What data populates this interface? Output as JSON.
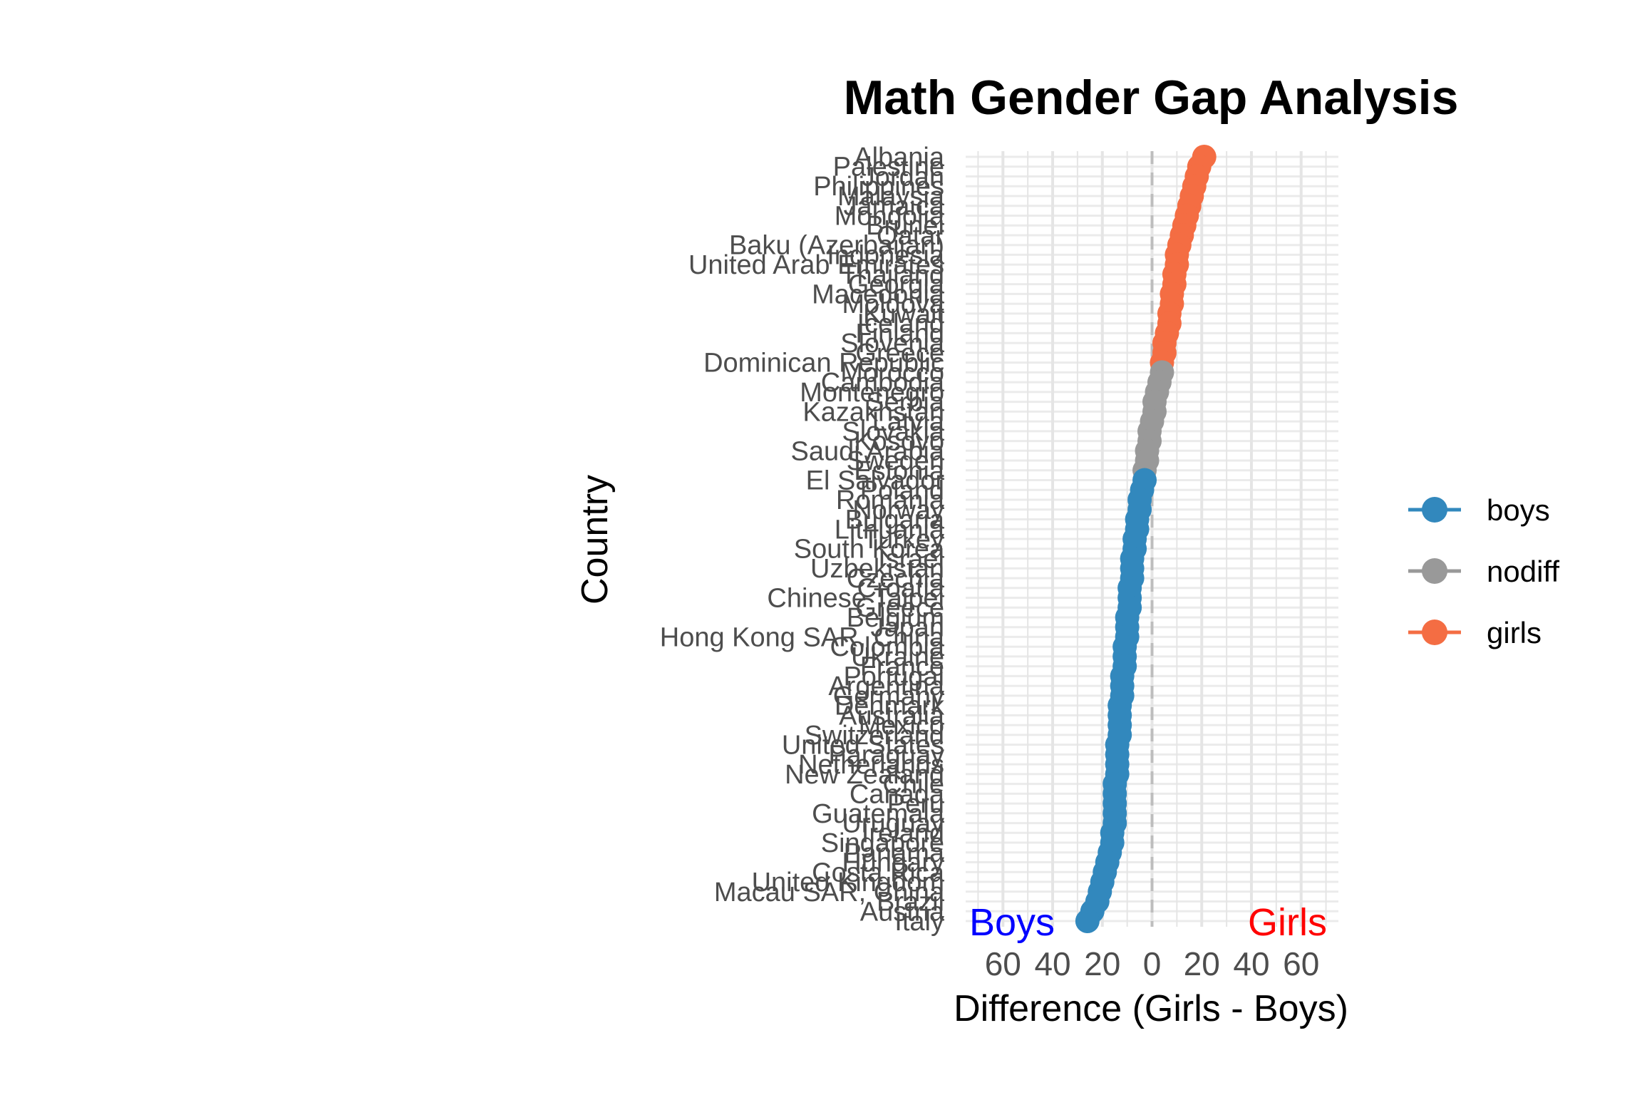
{
  "chart_data": {
    "type": "scatter",
    "title": "Math Gender Gap Analysis",
    "xlabel": "Difference (Girls - Boys)",
    "ylabel": "Country",
    "xlim": [
      -75,
      75
    ],
    "x_ticks": [
      -60,
      -40,
      -20,
      0,
      20,
      40,
      60
    ],
    "x_tick_labels": [
      "60",
      "40",
      "20",
      "0",
      "20",
      "40",
      "60"
    ],
    "grid": true,
    "reference_line_x": 0,
    "corner_labels": {
      "left": "Boys",
      "right": "Girls",
      "left_color": "#0000ff",
      "right_color": "#ff0000"
    },
    "legend": {
      "position": "right",
      "entries": [
        {
          "key": "boys",
          "label": "boys",
          "color": "#3288bd"
        },
        {
          "key": "nodiff",
          "label": "nodiff",
          "color": "#999999"
        },
        {
          "key": "girls",
          "label": "girls",
          "color": "#f46d43"
        }
      ]
    },
    "countries": [
      "Albania",
      "Palestine",
      "Jordan",
      "Philippines",
      "Malaysia",
      "Jamaica",
      "Mongolia",
      "Brunei",
      "Qatar",
      "Baku (Azerbaijan)",
      "Indonesia",
      "United Arab Emirates",
      "Thailand",
      "Georgia",
      "Macedonia",
      "Moldova",
      "Kuwait",
      "Iceland",
      "Finland",
      "Slovenia",
      "Greece",
      "Dominican Republic",
      "Morocco",
      "Cambodia",
      "Montenegro",
      "Serbia",
      "Kazakhstan",
      "Latvia",
      "Slovakia",
      "Kosovo",
      "Saudi Arabia",
      "Sweden",
      "Estonia",
      "El Salvador",
      "Poland",
      "Romania",
      "Norway",
      "Bulgaria",
      "Lithuania",
      "Turkey",
      "South Korea",
      "Israel",
      "Uzbekistan",
      "Czechia",
      "Croatia",
      "Chinese Taipei",
      "Greece",
      "Belgium",
      "Japan",
      "Hong Kong SAR, China",
      "Colombia",
      "Ukraine",
      "France",
      "Portugal",
      "Argentina",
      "Germany",
      "Denmark",
      "Australia",
      "Mexico",
      "Switzerland",
      "United States",
      "Paraguay",
      "Netherlands",
      "New Zealand",
      "Chile",
      "Canada",
      "Peru",
      "Guatemala",
      "Uruguay",
      "Ireland",
      "Singapore",
      "Panama",
      "Hungary",
      "Costa Rica",
      "United Kingdom",
      "Macau SAR, China",
      "Brazil",
      "Austria",
      "Italy"
    ],
    "points": [
      {
        "country": "Albania",
        "diff": 21,
        "group": "girls"
      },
      {
        "country": "Palestine",
        "diff": 19,
        "group": "girls"
      },
      {
        "country": "Jordan",
        "diff": 18,
        "group": "girls"
      },
      {
        "country": "Philippines",
        "diff": 17,
        "group": "girls"
      },
      {
        "country": "Malaysia",
        "diff": 16,
        "group": "girls"
      },
      {
        "country": "Jamaica",
        "diff": 15,
        "group": "girls"
      },
      {
        "country": "Mongolia",
        "diff": 14,
        "group": "girls"
      },
      {
        "country": "Brunei",
        "diff": 13,
        "group": "girls"
      },
      {
        "country": "Qatar",
        "diff": 12,
        "group": "girls"
      },
      {
        "country": "Baku (Azerbaijan)",
        "diff": 11,
        "group": "girls"
      },
      {
        "country": "Indonesia",
        "diff": 10,
        "group": "girls"
      },
      {
        "country": "United Arab Emirates",
        "diff": 10,
        "group": "girls"
      },
      {
        "country": "Thailand",
        "diff": 9,
        "group": "girls"
      },
      {
        "country": "Georgia",
        "diff": 9,
        "group": "girls"
      },
      {
        "country": "Macedonia",
        "diff": 8,
        "group": "girls"
      },
      {
        "country": "Moldova",
        "diff": 8,
        "group": "girls"
      },
      {
        "country": "Kuwait",
        "diff": 7,
        "group": "girls"
      },
      {
        "country": "Iceland",
        "diff": 7,
        "group": "girls"
      },
      {
        "country": "Finland",
        "diff": 6,
        "group": "girls"
      },
      {
        "country": "Slovenia",
        "diff": 5,
        "group": "girls"
      },
      {
        "country": "Greece",
        "diff": 5,
        "group": "girls"
      },
      {
        "country": "Dominican Republic",
        "diff": 4,
        "group": "girls"
      },
      {
        "country": "Morocco",
        "diff": 4,
        "group": "nodiff"
      },
      {
        "country": "Cambodia",
        "diff": 3,
        "group": "nodiff"
      },
      {
        "country": "Montenegro",
        "diff": 2,
        "group": "nodiff"
      },
      {
        "country": "Serbia",
        "diff": 1,
        "group": "nodiff"
      },
      {
        "country": "Kazakhstan",
        "diff": 1,
        "group": "nodiff"
      },
      {
        "country": "Latvia",
        "diff": 0,
        "group": "nodiff"
      },
      {
        "country": "Slovakia",
        "diff": -1,
        "group": "nodiff"
      },
      {
        "country": "Kosovo",
        "diff": -1,
        "group": "nodiff"
      },
      {
        "country": "Saudi Arabia",
        "diff": -2,
        "group": "nodiff"
      },
      {
        "country": "Sweden",
        "diff": -2,
        "group": "nodiff"
      },
      {
        "country": "Estonia",
        "diff": -3,
        "group": "nodiff"
      },
      {
        "country": "El Salvador",
        "diff": -3,
        "group": "boys"
      },
      {
        "country": "Poland",
        "diff": -4,
        "group": "boys"
      },
      {
        "country": "Romania",
        "diff": -5,
        "group": "boys"
      },
      {
        "country": "Norway",
        "diff": -5,
        "group": "boys"
      },
      {
        "country": "Bulgaria",
        "diff": -6,
        "group": "boys"
      },
      {
        "country": "Lithuania",
        "diff": -6,
        "group": "boys"
      },
      {
        "country": "Turkey",
        "diff": -7,
        "group": "boys"
      },
      {
        "country": "South Korea",
        "diff": -7,
        "group": "boys"
      },
      {
        "country": "Israel",
        "diff": -8,
        "group": "boys"
      },
      {
        "country": "Uzbekistan",
        "diff": -8,
        "group": "boys"
      },
      {
        "country": "Czechia",
        "diff": -8,
        "group": "boys"
      },
      {
        "country": "Croatia",
        "diff": -9,
        "group": "boys"
      },
      {
        "country": "Chinese Taipei",
        "diff": -9,
        "group": "boys"
      },
      {
        "country": "Greece",
        "diff": -9,
        "group": "boys"
      },
      {
        "country": "Belgium",
        "diff": -10,
        "group": "boys"
      },
      {
        "country": "Japan",
        "diff": -10,
        "group": "boys"
      },
      {
        "country": "Hong Kong SAR, China",
        "diff": -10,
        "group": "boys"
      },
      {
        "country": "Colombia",
        "diff": -11,
        "group": "boys"
      },
      {
        "country": "Ukraine",
        "diff": -11,
        "group": "boys"
      },
      {
        "country": "France",
        "diff": -11,
        "group": "boys"
      },
      {
        "country": "Portugal",
        "diff": -12,
        "group": "boys"
      },
      {
        "country": "Argentina",
        "diff": -12,
        "group": "boys"
      },
      {
        "country": "Germany",
        "diff": -12,
        "group": "boys"
      },
      {
        "country": "Denmark",
        "diff": -13,
        "group": "boys"
      },
      {
        "country": "Australia",
        "diff": -13,
        "group": "boys"
      },
      {
        "country": "Mexico",
        "diff": -13,
        "group": "boys"
      },
      {
        "country": "Switzerland",
        "diff": -13,
        "group": "boys"
      },
      {
        "country": "United States",
        "diff": -14,
        "group": "boys"
      },
      {
        "country": "Paraguay",
        "diff": -14,
        "group": "boys"
      },
      {
        "country": "Netherlands",
        "diff": -14,
        "group": "boys"
      },
      {
        "country": "New Zealand",
        "diff": -14,
        "group": "boys"
      },
      {
        "country": "Chile",
        "diff": -15,
        "group": "boys"
      },
      {
        "country": "Canada",
        "diff": -15,
        "group": "boys"
      },
      {
        "country": "Peru",
        "diff": -15,
        "group": "boys"
      },
      {
        "country": "Guatemala",
        "diff": -15,
        "group": "boys"
      },
      {
        "country": "Uruguay",
        "diff": -15,
        "group": "boys"
      },
      {
        "country": "Ireland",
        "diff": -16,
        "group": "boys"
      },
      {
        "country": "Singapore",
        "diff": -16,
        "group": "boys"
      },
      {
        "country": "Panama",
        "diff": -17,
        "group": "boys"
      },
      {
        "country": "Hungary",
        "diff": -18,
        "group": "boys"
      },
      {
        "country": "Costa Rica",
        "diff": -19,
        "group": "boys"
      },
      {
        "country": "United Kingdom",
        "diff": -20,
        "group": "boys"
      },
      {
        "country": "Macau SAR, China",
        "diff": -21,
        "group": "boys"
      },
      {
        "country": "Brazil",
        "diff": -22,
        "group": "boys"
      },
      {
        "country": "Austria",
        "diff": -24,
        "group": "boys"
      },
      {
        "country": "Italy",
        "diff": -26,
        "group": "boys"
      }
    ]
  }
}
